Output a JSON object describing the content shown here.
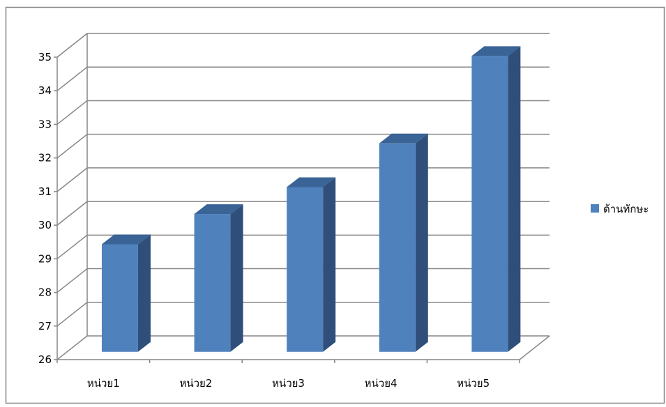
{
  "chart_data": {
    "type": "bar",
    "categories": [
      "หน่วย1",
      "หน่วย2",
      "หน่วย3",
      "หน่วย4",
      "หน่วย5"
    ],
    "series": [
      {
        "name": "ด้านทักษะ",
        "values": [
          29.2,
          30.1,
          30.9,
          32.2,
          34.8
        ]
      }
    ],
    "ylim": [
      26,
      35
    ],
    "yticks": [
      "26",
      "27",
      "28",
      "29",
      "30",
      "31",
      "32",
      "33",
      "34",
      "35"
    ],
    "grid": true,
    "legend_position": "right",
    "colors": {
      "bar_front": "#4f81bd",
      "bar_side": "#2f4f7a",
      "bar_top": "#3a6396",
      "grid": "#868686",
      "frame": "#868686"
    }
  }
}
